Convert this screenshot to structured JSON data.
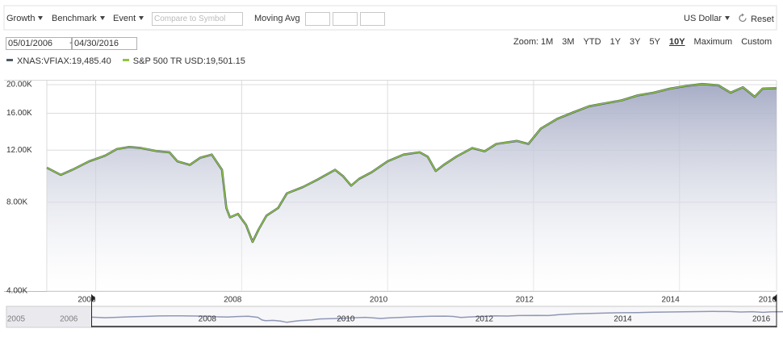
{
  "toolbar": {
    "growth": "Growth",
    "benchmark": "Benchmark",
    "event": "Event",
    "compare_placeholder": "Compare to Symbol",
    "moving_avg": "Moving Avg",
    "currency": "US Dollar",
    "reset": "Reset"
  },
  "date_range": {
    "start": "05/01/2006",
    "end": "04/30/2016"
  },
  "zoom": {
    "label": "Zoom:",
    "options": [
      "1M",
      "3M",
      "YTD",
      "1Y",
      "3Y",
      "5Y",
      "10Y",
      "Maximum",
      "Custom"
    ],
    "selected": 6
  },
  "chart_data": {
    "type": "area-line",
    "log_y": true,
    "grid": true,
    "x": [
      2006.33,
      2006.52,
      2006.68,
      2006.91,
      2007.13,
      2007.29,
      2007.46,
      2007.62,
      2007.85,
      2008.01,
      2008.12,
      2008.29,
      2008.43,
      2008.59,
      2008.73,
      2008.79,
      2008.84,
      2008.95,
      2009.06,
      2009.15,
      2009.23,
      2009.34,
      2009.5,
      2009.62,
      2009.84,
      2010.06,
      2010.28,
      2010.39,
      2010.5,
      2010.61,
      2010.78,
      2011.0,
      2011.22,
      2011.44,
      2011.55,
      2011.66,
      2011.77,
      2011.94,
      2012.16,
      2012.33,
      2012.49,
      2012.77,
      2012.93,
      2013.1,
      2013.32,
      2013.54,
      2013.76,
      2013.98,
      2014.21,
      2014.43,
      2014.65,
      2014.87,
      2015.09,
      2015.31,
      2015.53,
      2015.7,
      2015.87,
      2016.03,
      2016.14,
      2016.33
    ],
    "series": [
      {
        "name": "XNAS:VFIAX:19,485.40",
        "color": "#4d5966",
        "values": [
          10470,
          9900,
          10300,
          11000,
          11500,
          12100,
          12300,
          12200,
          11900,
          11800,
          11000,
          10700,
          11300,
          11600,
          10300,
          7650,
          7100,
          7300,
          6700,
          5870,
          6450,
          7200,
          7650,
          8570,
          9000,
          9600,
          10300,
          9800,
          9100,
          9600,
          10100,
          11000,
          11600,
          11800,
          11400,
          10200,
          10700,
          11400,
          12200,
          11900,
          12600,
          12900,
          12600,
          14200,
          15300,
          16100,
          16900,
          17300,
          17700,
          18400,
          18800,
          19400,
          19800,
          20100,
          19900,
          18800,
          19600,
          18200,
          19400,
          19485.4
        ]
      },
      {
        "name": "S&P 500 TR USD:19,501.15",
        "color": "#8dc63f",
        "values": [
          10470,
          9900,
          10300,
          11000,
          11500,
          12100,
          12300,
          12200,
          11900,
          11800,
          11000,
          10700,
          11300,
          11600,
          10300,
          7650,
          7100,
          7300,
          6700,
          5870,
          6450,
          7200,
          7650,
          8570,
          9000,
          9600,
          10300,
          9800,
          9100,
          9600,
          10100,
          11000,
          11600,
          11800,
          11400,
          10200,
          10700,
          11400,
          12200,
          11900,
          12600,
          12900,
          12600,
          14200,
          15300,
          16100,
          16900,
          17300,
          17700,
          18400,
          18800,
          19400,
          19800,
          20100,
          19900,
          18800,
          19600,
          18200,
          19400,
          19501.15
        ]
      }
    ],
    "xlim": [
      2006.33,
      2016.33
    ],
    "xticks": [
      2006,
      2008,
      2010,
      2012,
      2014,
      2016
    ],
    "ylim": [
      4000,
      20640
    ],
    "yticks": [
      {
        "value": 4000,
        "label": "4.00K"
      },
      {
        "value": 8000,
        "label": "8.00K"
      },
      {
        "value": 12000,
        "label": "12.00K"
      },
      {
        "value": 16000,
        "label": "16.00K"
      },
      {
        "value": 20000,
        "label": "20.00K"
      }
    ]
  },
  "navigator": {
    "xlim": [
      2005.1,
      2016.22
    ],
    "xticks": [
      2005,
      2006,
      2008,
      2010,
      2012,
      2014,
      2016
    ]
  }
}
